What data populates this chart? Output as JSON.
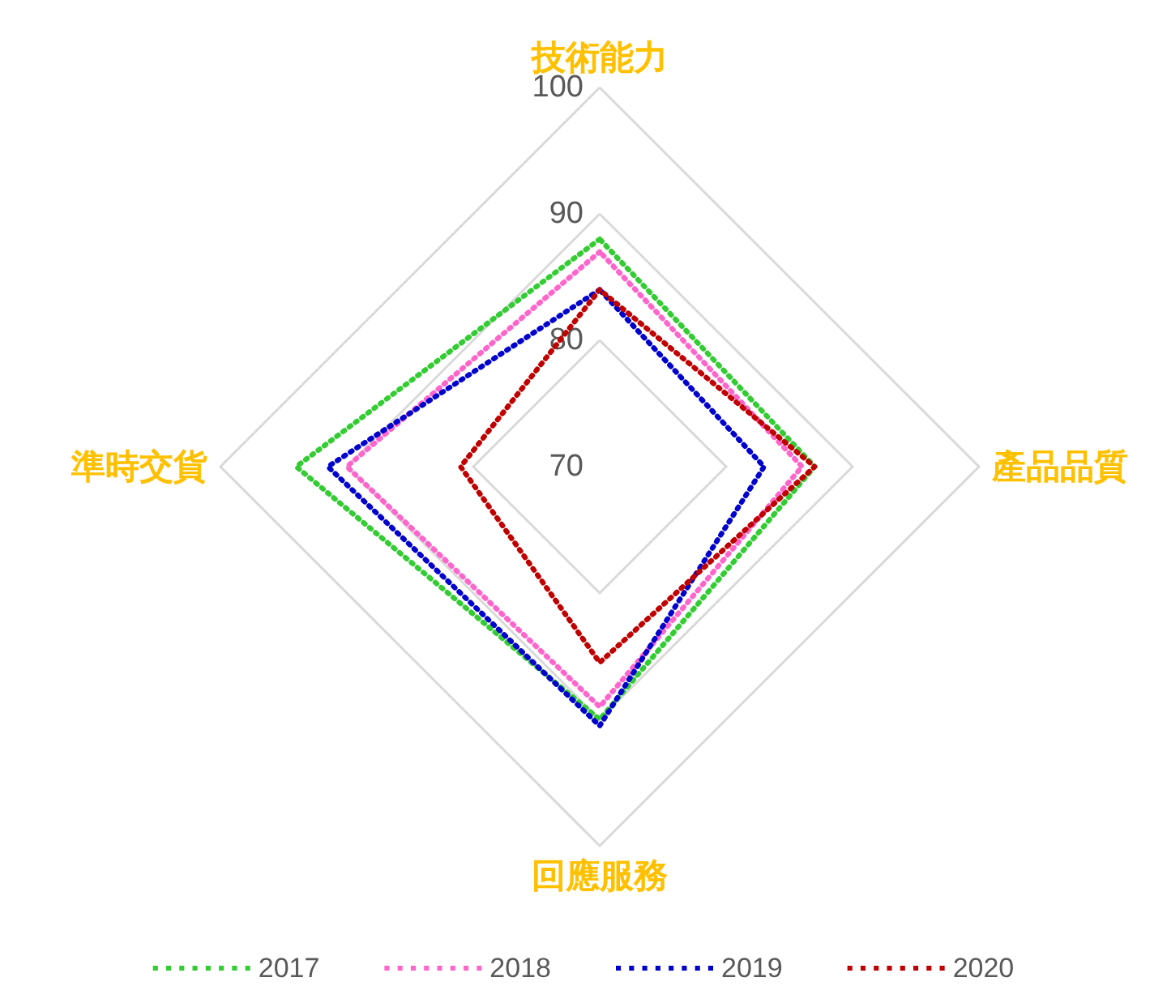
{
  "chart_data": {
    "type": "radar",
    "categories": [
      "技術能力",
      "產品品質",
      "回應服務",
      "準時交貨"
    ],
    "series": [
      {
        "name": "2017",
        "color": "#33cc33",
        "values": [
          88,
          87,
          90,
          94
        ]
      },
      {
        "name": "2018",
        "color": "#ff66cc",
        "values": [
          87,
          86,
          89,
          90
        ]
      },
      {
        "name": "2019",
        "color": "#0000cc",
        "values": [
          84,
          83,
          90.5,
          91.5
        ]
      },
      {
        "name": "2020",
        "color": "#c00000",
        "values": [
          84,
          87,
          85.5,
          81
        ]
      }
    ],
    "ylim": [
      70,
      100
    ],
    "yticks": [
      70,
      80,
      90,
      100
    ],
    "grid": true,
    "legend": "bottom",
    "line_style": "dotted",
    "marker": "none"
  }
}
